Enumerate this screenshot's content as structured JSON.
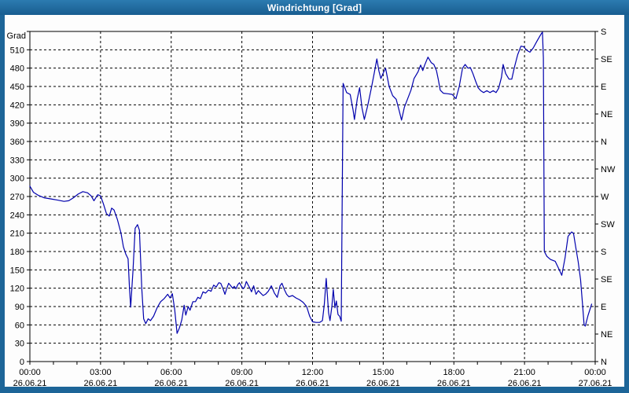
{
  "window": {
    "title": "Windrichtung [Grad]"
  },
  "colors": {
    "frame": "#1d6598",
    "titlebar_top": "#2c7bb0",
    "titlebar_bottom": "#185d90",
    "title_text": "#ffffff",
    "chart_background": "#fdfdfd",
    "grid": "#000000",
    "axis_text": "#000000",
    "line": "#0000ad"
  },
  "chart_data": {
    "type": "line",
    "title": "Windrichtung [Grad]",
    "x_axis": {
      "min_hours": 0,
      "max_hours": 24,
      "major_tick_hours": 3,
      "minor_tick_hours": 1,
      "ticks": [
        {
          "time": "00:00",
          "date": "26.06.21"
        },
        {
          "time": "03:00",
          "date": "26.06.21"
        },
        {
          "time": "06:00",
          "date": "26.06.21"
        },
        {
          "time": "09:00",
          "date": "26.06.21"
        },
        {
          "time": "12:00",
          "date": "26.06.21"
        },
        {
          "time": "15:00",
          "date": "26.06.21"
        },
        {
          "time": "18:00",
          "date": "26.06.21"
        },
        {
          "time": "21:00",
          "date": "26.06.21"
        },
        {
          "time": "00:00",
          "date": "27.06.21"
        }
      ]
    },
    "y_axis_left": {
      "unit_label": "Grad",
      "min": 0,
      "max": 540,
      "tick_step": 30,
      "highest_labeled_value": 510
    },
    "y_axis_right": {
      "tick_step": 45,
      "labels_top_to_bottom": [
        "S",
        "SE",
        "E",
        "NE",
        "N",
        "NW",
        "W",
        "SW",
        "S",
        "SE",
        "E",
        "NE",
        "N"
      ]
    },
    "grid": {
      "horizontal_step": 30,
      "vertical_step_hours": 3,
      "style": "dashed"
    },
    "series": [
      {
        "name": "Windrichtung",
        "color": "#0000ad",
        "points": [
          [
            0.0,
            287
          ],
          [
            0.15,
            277
          ],
          [
            0.35,
            272
          ],
          [
            0.6,
            268
          ],
          [
            0.9,
            266
          ],
          [
            1.2,
            264
          ],
          [
            1.45,
            262
          ],
          [
            1.65,
            263
          ],
          [
            1.85,
            268
          ],
          [
            2.05,
            274
          ],
          [
            2.25,
            278
          ],
          [
            2.45,
            276
          ],
          [
            2.6,
            271
          ],
          [
            2.72,
            263
          ],
          [
            2.88,
            273
          ],
          [
            3.0,
            271
          ],
          [
            3.12,
            258
          ],
          [
            3.25,
            242
          ],
          [
            3.37,
            238
          ],
          [
            3.47,
            251
          ],
          [
            3.57,
            248
          ],
          [
            3.72,
            232
          ],
          [
            3.87,
            210
          ],
          [
            3.97,
            188
          ],
          [
            4.07,
            176
          ],
          [
            4.17,
            168
          ],
          [
            4.23,
            120
          ],
          [
            4.28,
            89
          ],
          [
            4.38,
            150
          ],
          [
            4.47,
            218
          ],
          [
            4.57,
            224
          ],
          [
            4.65,
            215
          ],
          [
            4.75,
            120
          ],
          [
            4.83,
            70
          ],
          [
            4.92,
            62
          ],
          [
            5.02,
            70
          ],
          [
            5.12,
            67
          ],
          [
            5.25,
            74
          ],
          [
            5.4,
            88
          ],
          [
            5.55,
            98
          ],
          [
            5.7,
            103
          ],
          [
            5.85,
            110
          ],
          [
            5.95,
            104
          ],
          [
            6.05,
            111
          ],
          [
            6.15,
            85
          ],
          [
            6.25,
            46
          ],
          [
            6.35,
            55
          ],
          [
            6.45,
            68
          ],
          [
            6.55,
            92
          ],
          [
            6.62,
            76
          ],
          [
            6.72,
            90
          ],
          [
            6.8,
            84
          ],
          [
            6.92,
            98
          ],
          [
            7.03,
            98
          ],
          [
            7.13,
            105
          ],
          [
            7.24,
            103
          ],
          [
            7.35,
            114
          ],
          [
            7.46,
            112
          ],
          [
            7.58,
            117
          ],
          [
            7.69,
            115
          ],
          [
            7.8,
            125
          ],
          [
            7.91,
            122
          ],
          [
            8.02,
            129
          ],
          [
            8.1,
            128
          ],
          [
            8.19,
            120
          ],
          [
            8.28,
            110
          ],
          [
            8.36,
            120
          ],
          [
            8.44,
            128
          ],
          [
            8.53,
            124
          ],
          [
            8.61,
            120
          ],
          [
            8.68,
            123
          ],
          [
            8.75,
            119
          ],
          [
            8.83,
            126
          ],
          [
            8.9,
            129
          ],
          [
            8.97,
            124
          ],
          [
            9.05,
            119
          ],
          [
            9.12,
            122
          ],
          [
            9.19,
            131
          ],
          [
            9.27,
            125
          ],
          [
            9.34,
            120
          ],
          [
            9.41,
            114
          ],
          [
            9.5,
            124
          ],
          [
            9.6,
            110
          ],
          [
            9.7,
            116
          ],
          [
            9.8,
            112
          ],
          [
            9.9,
            108
          ],
          [
            10.0,
            110
          ],
          [
            10.12,
            115
          ],
          [
            10.25,
            124
          ],
          [
            10.38,
            112
          ],
          [
            10.5,
            105
          ],
          [
            10.62,
            124
          ],
          [
            10.7,
            128
          ],
          [
            10.8,
            118
          ],
          [
            10.9,
            110
          ],
          [
            11.0,
            106
          ],
          [
            11.15,
            108
          ],
          [
            11.3,
            104
          ],
          [
            11.45,
            101
          ],
          [
            11.6,
            97
          ],
          [
            11.75,
            90
          ],
          [
            11.88,
            74
          ],
          [
            12.0,
            65
          ],
          [
            12.15,
            64
          ],
          [
            12.3,
            64
          ],
          [
            12.42,
            67
          ],
          [
            12.5,
            94
          ],
          [
            12.58,
            136
          ],
          [
            12.68,
            80
          ],
          [
            12.74,
            67
          ],
          [
            12.82,
            90
          ],
          [
            12.88,
            118
          ],
          [
            12.95,
            88
          ],
          [
            13.01,
            99
          ],
          [
            13.08,
            77
          ],
          [
            13.15,
            74
          ],
          [
            13.22,
            66
          ],
          [
            13.3,
            455
          ],
          [
            13.45,
            440
          ],
          [
            13.6,
            437
          ],
          [
            13.72,
            412
          ],
          [
            13.78,
            396
          ],
          [
            13.9,
            430
          ],
          [
            14.0,
            448
          ],
          [
            14.1,
            415
          ],
          [
            14.2,
            396
          ],
          [
            14.35,
            420
          ],
          [
            14.5,
            448
          ],
          [
            14.62,
            472
          ],
          [
            14.73,
            495
          ],
          [
            14.82,
            475
          ],
          [
            14.9,
            463
          ],
          [
            15.0,
            472
          ],
          [
            15.1,
            480
          ],
          [
            15.25,
            450
          ],
          [
            15.4,
            435
          ],
          [
            15.55,
            429
          ],
          [
            15.67,
            412
          ],
          [
            15.78,
            395
          ],
          [
            15.9,
            416
          ],
          [
            16.05,
            431
          ],
          [
            16.18,
            444
          ],
          [
            16.31,
            463
          ],
          [
            16.48,
            474
          ],
          [
            16.59,
            485
          ],
          [
            16.68,
            476
          ],
          [
            16.76,
            485
          ],
          [
            16.9,
            498
          ],
          [
            17.04,
            489
          ],
          [
            17.15,
            486
          ],
          [
            17.26,
            476
          ],
          [
            17.34,
            461
          ],
          [
            17.42,
            444
          ],
          [
            17.55,
            439
          ],
          [
            17.75,
            438
          ],
          [
            17.93,
            437
          ],
          [
            18.09,
            430
          ],
          [
            18.23,
            450
          ],
          [
            18.37,
            480
          ],
          [
            18.48,
            486
          ],
          [
            18.6,
            480
          ],
          [
            18.7,
            481
          ],
          [
            18.81,
            471
          ],
          [
            18.92,
            459
          ],
          [
            19.03,
            448
          ],
          [
            19.14,
            443
          ],
          [
            19.26,
            440
          ],
          [
            19.4,
            443
          ],
          [
            19.53,
            440
          ],
          [
            19.67,
            443
          ],
          [
            19.79,
            440
          ],
          [
            19.9,
            447
          ],
          [
            20.02,
            465
          ],
          [
            20.09,
            486
          ],
          [
            20.2,
            471
          ],
          [
            20.34,
            462
          ],
          [
            20.46,
            462
          ],
          [
            20.57,
            481
          ],
          [
            20.71,
            502
          ],
          [
            20.85,
            516
          ],
          [
            20.96,
            515
          ],
          [
            21.1,
            509
          ],
          [
            21.23,
            506
          ],
          [
            21.37,
            513
          ],
          [
            21.54,
            525
          ],
          [
            21.69,
            535
          ],
          [
            21.76,
            539
          ],
          [
            21.8,
            497
          ],
          [
            21.84,
            180
          ],
          [
            21.95,
            172
          ],
          [
            22.1,
            167
          ],
          [
            22.3,
            164
          ],
          [
            22.45,
            152
          ],
          [
            22.58,
            141
          ],
          [
            22.72,
            170
          ],
          [
            22.85,
            205
          ],
          [
            23.0,
            212
          ],
          [
            23.08,
            210
          ],
          [
            23.18,
            186
          ],
          [
            23.28,
            163
          ],
          [
            23.38,
            134
          ],
          [
            23.45,
            100
          ],
          [
            23.53,
            60
          ],
          [
            23.58,
            58
          ],
          [
            23.7,
            76
          ],
          [
            23.85,
            94
          ]
        ]
      }
    ]
  }
}
